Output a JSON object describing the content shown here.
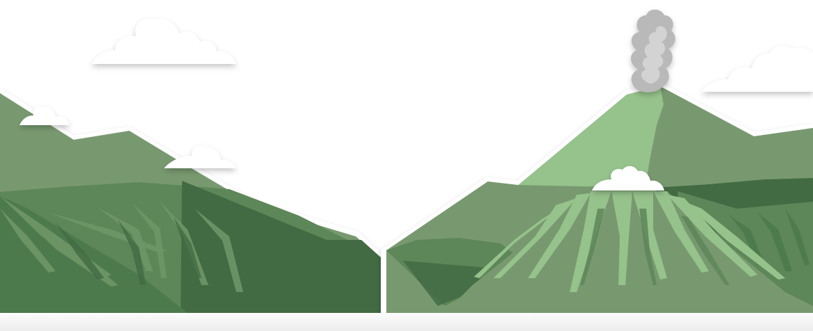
{
  "palette": {
    "background": "#ffffff",
    "mountain_dark": "#426b44",
    "mountain_mid": "#5d8659",
    "mountain_main": "#78996f",
    "mountain_light": "#96c28b",
    "ridge_edge": "#ffffff",
    "smoke": "#b9b9b9",
    "cloud": "#ffffff"
  },
  "scene": {
    "left_range": "left-mountain-range",
    "right_range": "right-mountain-range",
    "volcano": "smoking-volcano"
  }
}
